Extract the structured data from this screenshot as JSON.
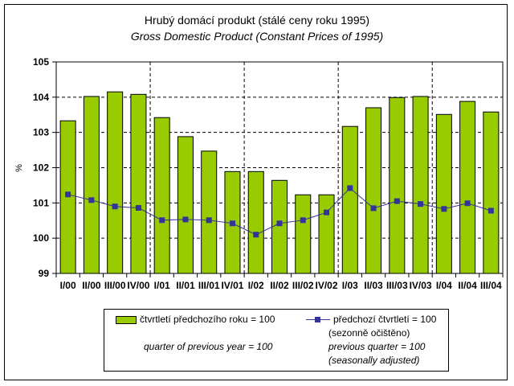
{
  "chart_data": {
    "type": "bar",
    "title": "Hrubý domácí produkt (stálé ceny roku 1995)",
    "subtitle": "Gross Domestic Product (Constant Prices of 1995)",
    "xlabel": "",
    "ylabel": "%",
    "ylim": [
      99,
      105
    ],
    "yticks": [
      99,
      100,
      101,
      102,
      103,
      104,
      105
    ],
    "grid": true,
    "categories": [
      "I/00",
      "II/00",
      "III/00",
      "IV/00",
      "I/01",
      "II/01",
      "III/01",
      "IV/01",
      "I/02",
      "II/02",
      "III/02",
      "IV/02",
      "I/03",
      "II/03",
      "III/03",
      "IV/03",
      "I/04",
      "II/04",
      "III/04"
    ],
    "series": [
      {
        "name": "čtvrtletí předchozího roku = 100",
        "name_en": "quarter of previous year = 100",
        "type": "bar",
        "color": "#99cc00",
        "values": [
          103.33,
          104.02,
          104.15,
          104.08,
          103.42,
          102.88,
          102.47,
          101.89,
          101.89,
          101.64,
          101.23,
          101.23,
          103.17,
          103.7,
          103.99,
          104.02,
          103.51,
          103.88,
          103.58
        ]
      },
      {
        "name": "předchozí čtvrtletí = 100",
        "name_note": "(sezonně očištěno)",
        "name_en": "previous quarter = 100",
        "name_en_note": "(seasonally adjusted)",
        "type": "line",
        "color": "#333399",
        "values": [
          101.24,
          101.08,
          100.9,
          100.86,
          100.51,
          100.53,
          100.51,
          100.42,
          100.1,
          100.42,
          100.51,
          100.73,
          101.42,
          100.85,
          101.05,
          100.97,
          100.83,
          100.99,
          100.78
        ]
      }
    ],
    "legend_position": "bottom"
  }
}
